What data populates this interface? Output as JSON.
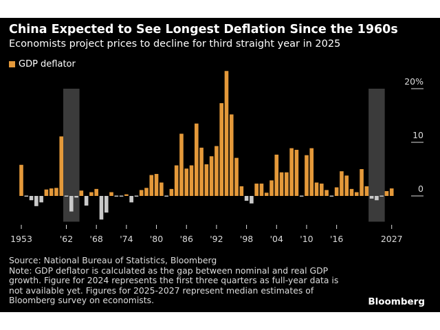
{
  "title": "China Expected to See Longest Deflation Since the 1960s",
  "subtitle": "Economists project prices to decline for third straight year in 2025",
  "source": "Source: National Bureau of Statistics, Bloomberg",
  "note": "Note: GDP deflator is calculated as the gap between nominal and real GDP growth. Figure for 2024 represents the first three quarters as full-year data is not available yet. Figures for 2025-2027 represent median estimates of Bloomberg survey on economists.",
  "brand": "Bloomberg",
  "colors": {
    "positive": "#e4993a",
    "negative": "#c9c9c9",
    "shade": "#3b3b3b",
    "background": "#000000"
  },
  "chart_data": {
    "type": "bar",
    "title": "",
    "legend": [
      {
        "name": "GDP deflator",
        "position": "top-left"
      }
    ],
    "xlabel": "",
    "ylabel": "",
    "ylim": [
      -5,
      24
    ],
    "yticks": [
      {
        "value": 20,
        "label": "20%"
      },
      {
        "value": 10,
        "label": "10"
      },
      {
        "value": 0,
        "label": "0"
      }
    ],
    "xticks": [
      {
        "year": 1953,
        "label": "1953"
      },
      {
        "year": 1962,
        "label": "'62"
      },
      {
        "year": 1968,
        "label": "'68"
      },
      {
        "year": 1974,
        "label": "'74"
      },
      {
        "year": 1980,
        "label": "'80"
      },
      {
        "year": 1986,
        "label": "'86"
      },
      {
        "year": 1992,
        "label": "'92"
      },
      {
        "year": 1998,
        "label": "'98"
      },
      {
        "year": 2004,
        "label": "'04"
      },
      {
        "year": 2010,
        "label": "'10"
      },
      {
        "year": 2016,
        "label": "'16"
      },
      {
        "year": 2027,
        "label": "2027"
      }
    ],
    "shaded_periods": [
      [
        1962,
        1964
      ],
      [
        2023,
        2025
      ]
    ],
    "series": [
      {
        "name": "GDP deflator",
        "start_year": 1953,
        "values": [
          5.8,
          0,
          -0.8,
          -1.9,
          -1.2,
          1.2,
          1.4,
          1.5,
          11.1,
          -0.1,
          -2.9,
          -0.3,
          1.0,
          -1.8,
          0.7,
          1.3,
          -4.4,
          -3.1,
          0.7,
          0.1,
          0.2,
          0.3,
          -1.2,
          -0.1,
          1.1,
          1.5,
          3.9,
          4.1,
          2.5,
          -0.1,
          1.3,
          5.7,
          11.6,
          5.1,
          5.7,
          13.5,
          9.0,
          5.9,
          7.4,
          9.3,
          17.3,
          23.3,
          15.2,
          7.1,
          1.8,
          -0.9,
          -1.4,
          2.3,
          2.3,
          0.6,
          2.9,
          7.7,
          4.4,
          4.4,
          8.9,
          8.6,
          -0.2,
          7.6,
          8.9,
          2.5,
          2.3,
          1.1,
          0.0,
          1.6,
          4.6,
          3.8,
          1.3,
          0.7,
          5.0,
          1.8,
          -0.5,
          -0.8,
          -0.1,
          0.9,
          1.4
        ]
      }
    ]
  }
}
